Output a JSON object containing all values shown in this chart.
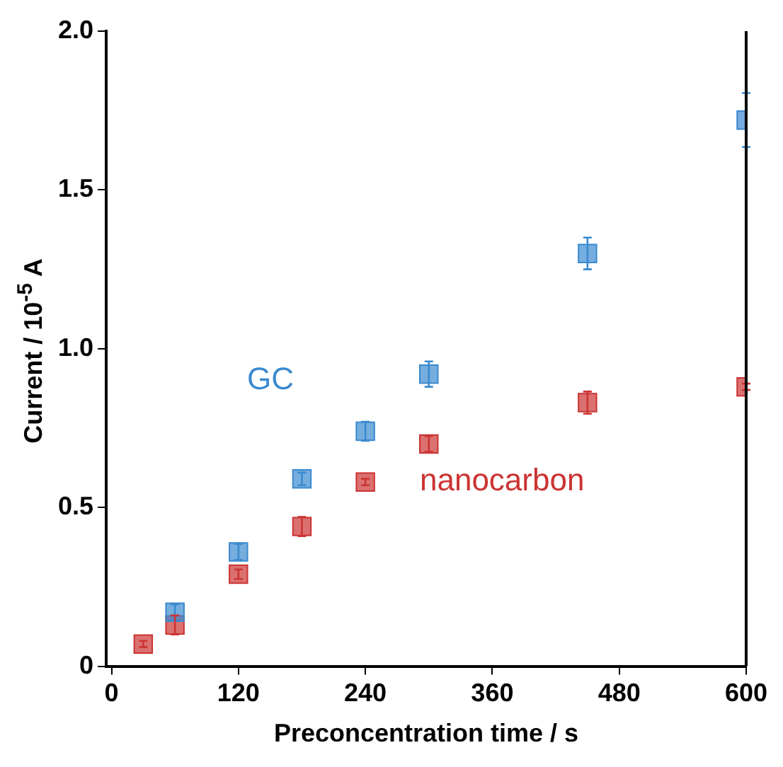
{
  "chart_data": {
    "type": "scatter",
    "xlabel": "Preconcentration time / s",
    "ylabel": "Current / 10$^{-5}$ A",
    "xlim": [
      -5,
      600
    ],
    "xticks": [
      0,
      120,
      240,
      360,
      480,
      600
    ],
    "ylim": [
      0,
      2
    ],
    "yticks": [
      0,
      0.5,
      {
        "value": 1,
        "label": "1.0"
      },
      1.5,
      {
        "value": 2,
        "label": "2.0"
      }
    ],
    "grid": false,
    "legend": false,
    "marker": "square",
    "series": [
      {
        "name": "GC",
        "color": "#3a8ad0",
        "x": [
          60,
          120,
          180,
          240,
          300,
          450,
          600
        ],
        "values": [
          0.17,
          0.36,
          0.59,
          0.74,
          0.92,
          1.3,
          1.72
        ],
        "errors": [
          0.025,
          0.025,
          0.02,
          0.03,
          0.04,
          0.05,
          0.085
        ]
      },
      {
        "name": "nanocarbon",
        "color": "#cc3333",
        "x": [
          30,
          60,
          120,
          180,
          240,
          300,
          450,
          600
        ],
        "values": [
          0.07,
          0.13,
          0.29,
          0.44,
          0.58,
          0.7,
          0.83,
          0.88
        ],
        "errors": [
          0.01,
          0.03,
          0.015,
          0.03,
          0.01,
          0.025,
          0.035,
          0.01
        ]
      }
    ]
  }
}
